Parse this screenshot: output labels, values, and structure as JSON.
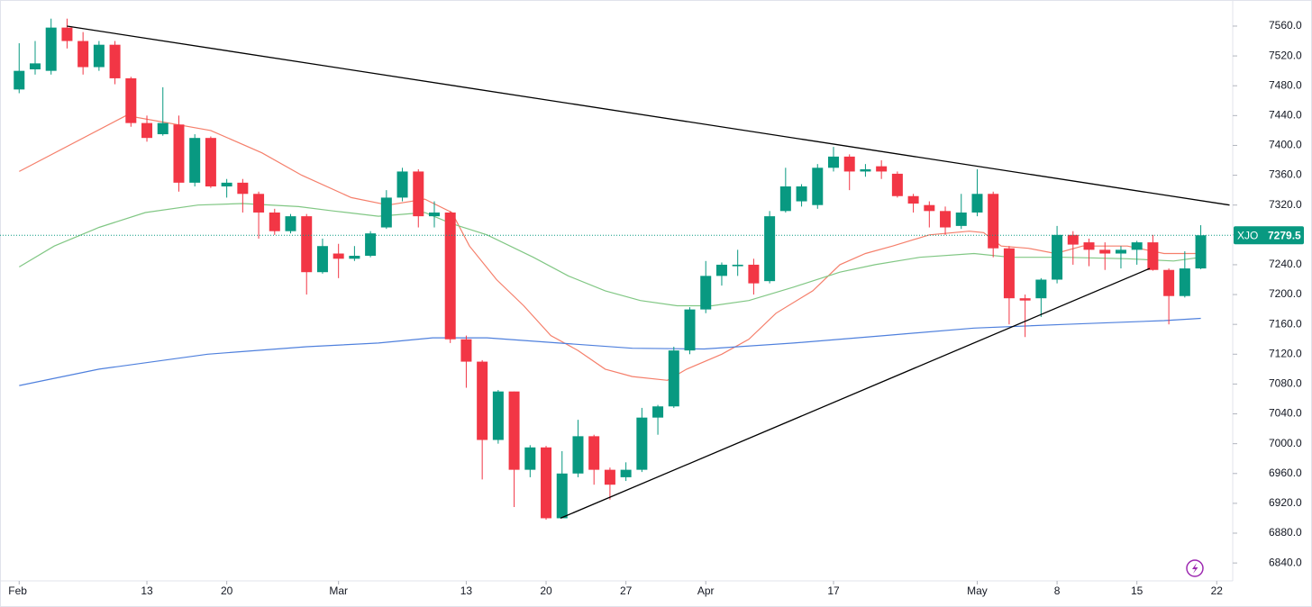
{
  "chart_data": {
    "type": "candlestick",
    "symbol": "XJO",
    "up_color": "#089981",
    "down_color": "#f23645",
    "grid": false,
    "xlim": [
      -1.2,
      76
    ],
    "ylim": [
      6816,
      7595
    ],
    "yticks": [
      {
        "value": 7560,
        "label": "7560.0"
      },
      {
        "value": 7520,
        "label": "7520.0"
      },
      {
        "value": 7480,
        "label": "7480.0"
      },
      {
        "value": 7440,
        "label": "7440.0"
      },
      {
        "value": 7400,
        "label": "7400.0"
      },
      {
        "value": 7360,
        "label": "7360.0"
      },
      {
        "value": 7320,
        "label": "7320.0"
      },
      {
        "value": 7280,
        "label": "7280.0"
      },
      {
        "value": 7240,
        "label": "7240.0"
      },
      {
        "value": 7200,
        "label": "7200.0"
      },
      {
        "value": 7160,
        "label": "7160.0"
      },
      {
        "value": 7120,
        "label": "7120.0"
      },
      {
        "value": 7080,
        "label": "7080.0"
      },
      {
        "value": 7040,
        "label": "7040.0"
      },
      {
        "value": 7000,
        "label": "7000.0"
      },
      {
        "value": 6960,
        "label": "6960.0"
      },
      {
        "value": 6920,
        "label": "6920.0"
      },
      {
        "value": 6880,
        "label": "6880.0"
      },
      {
        "value": 6840,
        "label": "6840.0"
      }
    ],
    "xticks": [
      {
        "value": 0,
        "label": "Feb"
      },
      {
        "value": 8,
        "label": "13"
      },
      {
        "value": 13,
        "label": "20"
      },
      {
        "value": 20,
        "label": "Mar"
      },
      {
        "value": 28,
        "label": "13"
      },
      {
        "value": 33,
        "label": "20"
      },
      {
        "value": 38,
        "label": "27"
      },
      {
        "value": 43,
        "label": "Apr"
      },
      {
        "value": 51,
        "label": "17"
      },
      {
        "value": 60,
        "label": "May"
      },
      {
        "value": 65,
        "label": "8"
      },
      {
        "value": 70,
        "label": "15"
      },
      {
        "value": 75,
        "label": "22"
      }
    ],
    "open": [
      7475,
      7502,
      7500,
      7558,
      7540,
      7505,
      7535,
      7490,
      7430,
      7415,
      7428,
      7350,
      7410,
      7345,
      7350,
      7335,
      7310,
      7285,
      7305,
      7230,
      7255,
      7248,
      7252,
      7290,
      7330,
      7365,
      7305,
      7310,
      7140,
      7110,
      7005,
      7070,
      6965,
      6995,
      6900,
      6960,
      7010,
      6965,
      6955,
      6965,
      7035,
      7050,
      7125,
      7180,
      7225,
      7238,
      7240,
      7218,
      7312,
      7325,
      7320,
      7370,
      7385,
      7365,
      7372,
      7362,
      7332,
      7320,
      7312,
      7292,
      7310,
      7335,
      7262,
      7195,
      7195,
      7220,
      7280,
      7270,
      7260,
      7255,
      7260,
      7270,
      7233,
      7198,
      7235
    ],
    "high": [
      7537,
      7540,
      7570,
      7570,
      7552,
      7540,
      7540,
      7492,
      7440,
      7478,
      7440,
      7415,
      7412,
      7355,
      7355,
      7338,
      7315,
      7308,
      7308,
      7275,
      7268,
      7265,
      7285,
      7340,
      7370,
      7368,
      7325,
      7312,
      7145,
      7112,
      7072,
      7070,
      6998,
      6997,
      6990,
      7032,
      7012,
      6968,
      6975,
      7048,
      7052,
      7130,
      7183,
      7245,
      7243,
      7260,
      7248,
      7312,
      7370,
      7348,
      7375,
      7398,
      7388,
      7375,
      7380,
      7365,
      7335,
      7325,
      7318,
      7335,
      7368,
      7338,
      7265,
      7200,
      7222,
      7292,
      7285,
      7275,
      7270,
      7265,
      7272,
      7280,
      7235,
      7258,
      7293
    ],
    "low": [
      7470,
      7495,
      7495,
      7530,
      7495,
      7500,
      7482,
      7425,
      7405,
      7413,
      7338,
      7345,
      7343,
      7330,
      7310,
      7275,
      7280,
      7282,
      7200,
      7228,
      7222,
      7245,
      7250,
      7288,
      7325,
      7290,
      7290,
      7135,
      7075,
      6952,
      7000,
      6915,
      6955,
      6898,
      6900,
      6955,
      6945,
      6925,
      6950,
      6962,
      7012,
      7048,
      7120,
      7175,
      7212,
      7225,
      7200,
      7215,
      7310,
      7318,
      7315,
      7365,
      7340,
      7358,
      7355,
      7330,
      7310,
      7290,
      7280,
      7288,
      7305,
      7250,
      7160,
      7143,
      7170,
      7215,
      7240,
      7238,
      7233,
      7235,
      7240,
      7232,
      7160,
      7196,
      7234
    ],
    "close": [
      7500,
      7510,
      7558,
      7540,
      7505,
      7535,
      7490,
      7430,
      7410,
      7430,
      7350,
      7410,
      7345,
      7350,
      7335,
      7310,
      7285,
      7305,
      7230,
      7265,
      7248,
      7252,
      7282,
      7330,
      7365,
      7305,
      7310,
      7140,
      7110,
      7005,
      7070,
      6965,
      6995,
      6900,
      6960,
      7010,
      6965,
      6945,
      6965,
      7035,
      7050,
      7125,
      7180,
      7225,
      7240,
      7240,
      7215,
      7305,
      7345,
      7345,
      7370,
      7385,
      7365,
      7368,
      7365,
      7332,
      7322,
      7312,
      7290,
      7310,
      7335,
      7262,
      7195,
      7192,
      7220,
      7280,
      7267,
      7260,
      7255,
      7260,
      7270,
      7233,
      7198,
      7235,
      7279.5
    ],
    "lines": [
      {
        "color": "#f57f6b",
        "x": [
          0,
          6.7,
          12,
          15.2,
          17.7,
          20.8,
          23.1,
          25.4,
          27.1,
          28.2,
          29.9,
          31.6,
          33.3,
          35,
          36.7,
          38.4,
          40.6,
          41.8,
          44,
          45.7,
          47.4,
          49.7,
          51.4,
          53,
          54.7,
          57,
          59.5,
          60.4,
          61.5,
          63.2,
          64.9,
          66.6,
          69.4,
          71.7,
          74
        ],
        "values": [
          7365,
          7440,
          7420,
          7390,
          7360,
          7330,
          7320,
          7328,
          7310,
          7265,
          7220,
          7185,
          7145,
          7125,
          7100,
          7090,
          7085,
          7100,
          7120,
          7140,
          7175,
          7205,
          7240,
          7255,
          7265,
          7280,
          7285,
          7283,
          7265,
          7262,
          7255,
          7265,
          7265,
          7255,
          7255
        ]
      },
      {
        "color": "#81c784",
        "x": [
          0,
          2.2,
          5,
          7.9,
          11.2,
          14,
          17.5,
          19.7,
          22.5,
          25.4,
          27.1,
          29.3,
          32.2,
          34.4,
          36.7,
          38.9,
          41.2,
          43.4,
          45.7,
          48.5,
          51.4,
          53.6,
          56.4,
          59.8,
          62.1,
          65.5,
          69.4,
          72.3,
          74
        ],
        "values": [
          7237,
          7265,
          7290,
          7310,
          7320,
          7322,
          7318,
          7312,
          7305,
          7310,
          7295,
          7280,
          7250,
          7225,
          7205,
          7192,
          7185,
          7185,
          7192,
          7210,
          7230,
          7240,
          7250,
          7255,
          7250,
          7250,
          7248,
          7245,
          7250
        ]
      },
      {
        "color": "#4f80dd",
        "x": [
          0,
          5,
          11.8,
          18,
          22.5,
          25.9,
          29.3,
          33.8,
          38.4,
          42.9,
          48.5,
          54.2,
          59.8,
          65.5,
          71.7,
          74
        ],
        "values": [
          7078,
          7100,
          7120,
          7130,
          7135,
          7142,
          7142,
          7135,
          7128,
          7127,
          7135,
          7145,
          7155,
          7160,
          7165,
          7168
        ]
      }
    ],
    "trendlines": [
      {
        "color": "#000000",
        "x": [
          3,
          75.8
        ],
        "values": [
          7560,
          7320
        ]
      },
      {
        "color": "#000000",
        "x": [
          33.9,
          70.8
        ],
        "values": [
          6900,
          7235
        ]
      }
    ]
  }
}
